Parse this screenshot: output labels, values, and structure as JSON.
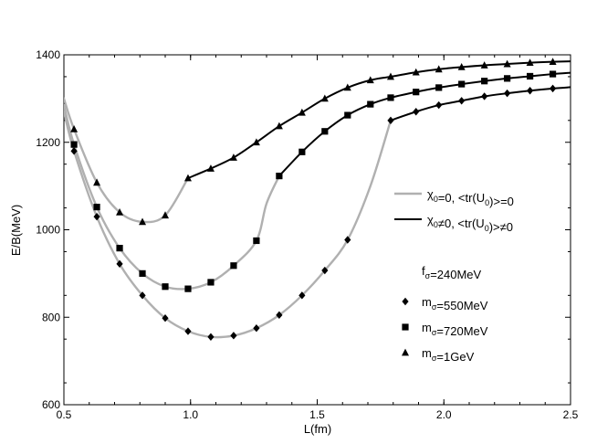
{
  "chart_data": {
    "type": "line",
    "xlabel": "L(fm)",
    "ylabel": "E/B(MeV)",
    "xlim": [
      0.5,
      2.5
    ],
    "ylim": [
      600,
      1400
    ],
    "xticks": [
      0.5,
      1.0,
      1.5,
      2.0,
      2.5
    ],
    "yticks": [
      600,
      800,
      1000,
      1200,
      1400
    ],
    "xtick_labels": [
      "0.5",
      "1.0",
      "1.5",
      "2.0",
      "2.5"
    ],
    "ytick_labels": [
      "600",
      "800",
      "1000",
      "1200",
      "1400"
    ],
    "grid": false,
    "legend_lines": [
      {
        "main": "χ",
        "sub": "0",
        "rest": "=0, <tr(U",
        "sub2": "0",
        "rest2": ")>=0",
        "color": "#b0b0b0"
      },
      {
        "main": "χ",
        "sub": "0",
        "rest": "≠0, <tr(U",
        "sub2": "0",
        "rest2": ")>≠0",
        "color": "#000000"
      }
    ],
    "f_label": {
      "main": "f",
      "sub": "σ",
      "rest": "=240MeV"
    },
    "legend_markers": [
      {
        "main": "m",
        "sub": "σ",
        "rest": "=550MeV",
        "marker": "diamond"
      },
      {
        "main": "m",
        "sub": "σ",
        "rest": "=720MeV",
        "marker": "square"
      },
      {
        "main": "m",
        "sub": "σ",
        "rest": "=1GeV",
        "marker": "triangle"
      }
    ],
    "series": [
      {
        "marker": "diamond",
        "x": [
          0.5,
          0.54,
          0.63,
          0.72,
          0.81,
          0.9,
          0.99,
          1.08,
          1.17,
          1.26,
          1.35,
          1.44,
          1.53,
          1.62,
          1.71,
          1.79,
          1.89,
          1.98,
          2.07,
          2.16,
          2.25,
          2.34,
          2.43,
          2.5
        ],
        "y": [
          1270,
          1180,
          1030,
          922,
          850,
          798,
          768,
          755,
          758,
          775,
          805,
          850,
          907,
          977,
          1100,
          1250,
          1270,
          1285,
          1295,
          1305,
          1312,
          1318,
          1323,
          1326
        ],
        "segments": [
          {
            "from": 0,
            "to": 15,
            "color": "#b0b0b0"
          },
          {
            "from": 15,
            "to": 23,
            "color": "#000000"
          }
        ],
        "marker_idx": [
          1,
          2,
          3,
          4,
          5,
          6,
          7,
          8,
          9,
          10,
          11,
          12,
          13,
          15,
          16,
          17,
          18,
          19,
          20,
          21,
          22
        ]
      },
      {
        "marker": "square",
        "x": [
          0.5,
          0.54,
          0.63,
          0.72,
          0.81,
          0.9,
          0.99,
          1.08,
          1.17,
          1.26,
          1.3,
          1.35,
          1.44,
          1.53,
          1.62,
          1.71,
          1.79,
          1.89,
          1.98,
          2.07,
          2.16,
          2.25,
          2.34,
          2.43,
          2.5
        ],
        "y": [
          1285,
          1195,
          1052,
          958,
          900,
          870,
          865,
          880,
          918,
          975,
          1060,
          1123,
          1178,
          1225,
          1262,
          1287,
          1302,
          1315,
          1325,
          1333,
          1340,
          1346,
          1351,
          1356,
          1359
        ],
        "segments": [
          {
            "from": 0,
            "to": 11,
            "color": "#b0b0b0"
          },
          {
            "from": 11,
            "to": 24,
            "color": "#000000"
          }
        ],
        "marker_idx": [
          1,
          2,
          3,
          4,
          5,
          6,
          7,
          8,
          9,
          11,
          12,
          13,
          14,
          15,
          16,
          17,
          18,
          19,
          20,
          21,
          22,
          23
        ]
      },
      {
        "marker": "triangle",
        "x": [
          0.5,
          0.54,
          0.63,
          0.72,
          0.81,
          0.9,
          0.99,
          1.08,
          1.17,
          1.26,
          1.35,
          1.44,
          1.53,
          1.62,
          1.71,
          1.79,
          1.89,
          1.98,
          2.07,
          2.16,
          2.25,
          2.34,
          2.43,
          2.5
        ],
        "y": [
          1300,
          1230,
          1108,
          1040,
          1018,
          1033,
          1118,
          1140,
          1165,
          1200,
          1237,
          1268,
          1300,
          1325,
          1342,
          1350,
          1360,
          1367,
          1372,
          1376,
          1379,
          1382,
          1384,
          1385
        ],
        "segments": [
          {
            "from": 0,
            "to": 6,
            "color": "#b0b0b0"
          },
          {
            "from": 6,
            "to": 23,
            "color": "#000000"
          }
        ],
        "marker_idx": [
          1,
          2,
          3,
          4,
          5,
          6,
          7,
          8,
          9,
          10,
          11,
          12,
          13,
          14,
          15,
          16,
          17,
          18,
          19,
          20,
          21,
          22
        ]
      }
    ]
  }
}
